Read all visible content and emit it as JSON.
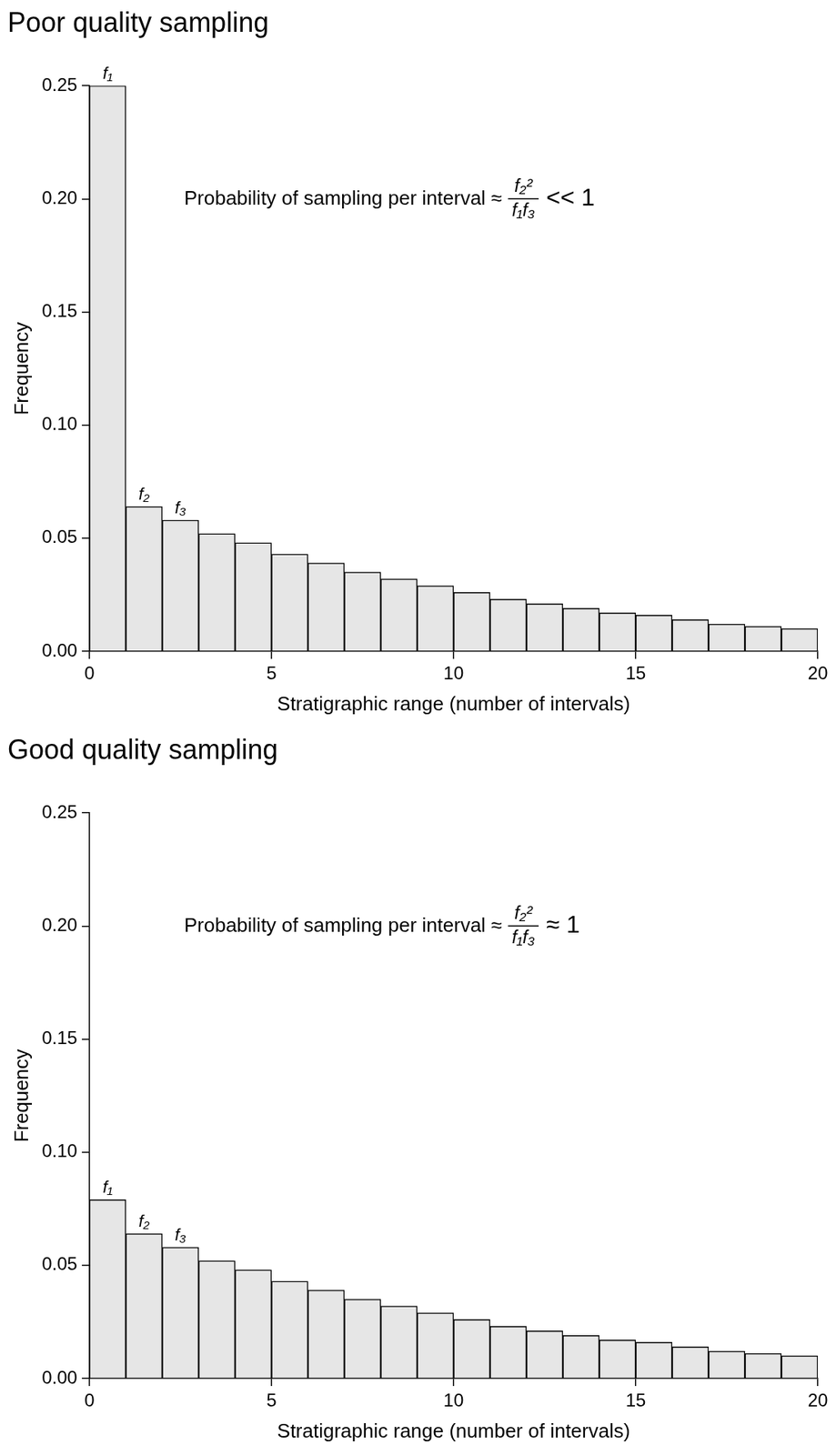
{
  "chart_data": [
    {
      "type": "histogram",
      "title": "Poor quality sampling",
      "x_label": "Stratigraphic range (number of intervals)",
      "y_label": "Frequency",
      "bins": [
        0,
        1,
        2,
        3,
        4,
        5,
        6,
        7,
        8,
        9,
        10,
        11,
        12,
        13,
        14,
        15,
        16,
        17,
        18,
        19,
        20
      ],
      "values": [
        0.25,
        0.064,
        0.058,
        0.052,
        0.048,
        0.043,
        0.039,
        0.035,
        0.032,
        0.029,
        0.026,
        0.023,
        0.021,
        0.019,
        0.017,
        0.016,
        0.014,
        0.012,
        0.011,
        0.01
      ],
      "bar_labels": [
        "f₁",
        "f₂",
        "f₃",
        null,
        null,
        null,
        null,
        null,
        null,
        null,
        null,
        null,
        null,
        null,
        null,
        null,
        null,
        null,
        null,
        null
      ],
      "color": "#e6e6e6",
      "xlim": [
        0,
        20
      ],
      "xticks": [
        0,
        5,
        10,
        15,
        20
      ],
      "ylim": [
        0,
        0.25
      ],
      "yticks": [
        {
          "value": 0,
          "label": "0.00"
        },
        {
          "value": 0.05,
          "label": "0.05"
        },
        {
          "value": 0.1,
          "label": "0.10"
        },
        {
          "value": 0.15,
          "label": "0.15"
        },
        {
          "value": 0.2,
          "label": "0.20"
        },
        {
          "value": 0.25,
          "label": "0.25"
        }
      ],
      "grid": false,
      "annotation": {
        "prefix": "Probability of sampling per interval ≈",
        "numerator": "f₂²",
        "denominator": "f₁f₃",
        "suffix": "<< 1"
      }
    },
    {
      "type": "histogram",
      "title": "Good quality sampling",
      "x_label": "Stratigraphic range (number of intervals)",
      "y_label": "Frequency",
      "bins": [
        0,
        1,
        2,
        3,
        4,
        5,
        6,
        7,
        8,
        9,
        10,
        11,
        12,
        13,
        14,
        15,
        16,
        17,
        18,
        19,
        20
      ],
      "values": [
        0.079,
        0.064,
        0.058,
        0.052,
        0.048,
        0.043,
        0.039,
        0.035,
        0.032,
        0.029,
        0.026,
        0.023,
        0.021,
        0.019,
        0.017,
        0.016,
        0.014,
        0.012,
        0.011,
        0.01
      ],
      "bar_labels": [
        "f₁",
        "f₂",
        "f₃",
        null,
        null,
        null,
        null,
        null,
        null,
        null,
        null,
        null,
        null,
        null,
        null,
        null,
        null,
        null,
        null,
        null
      ],
      "color": "#e6e6e6",
      "xlim": [
        0,
        20
      ],
      "xticks": [
        0,
        5,
        10,
        15,
        20
      ],
      "ylim": [
        0,
        0.25
      ],
      "yticks": [
        {
          "value": 0,
          "label": "0.00"
        },
        {
          "value": 0.05,
          "label": "0.05"
        },
        {
          "value": 0.1,
          "label": "0.10"
        },
        {
          "value": 0.15,
          "label": "0.15"
        },
        {
          "value": 0.2,
          "label": "0.20"
        },
        {
          "value": 0.25,
          "label": "0.25"
        }
      ],
      "grid": false,
      "annotation": {
        "prefix": "Probability of sampling per interval ≈",
        "numerator": "f₂²",
        "denominator": "f₁f₃",
        "suffix": "≈ 1"
      }
    }
  ]
}
